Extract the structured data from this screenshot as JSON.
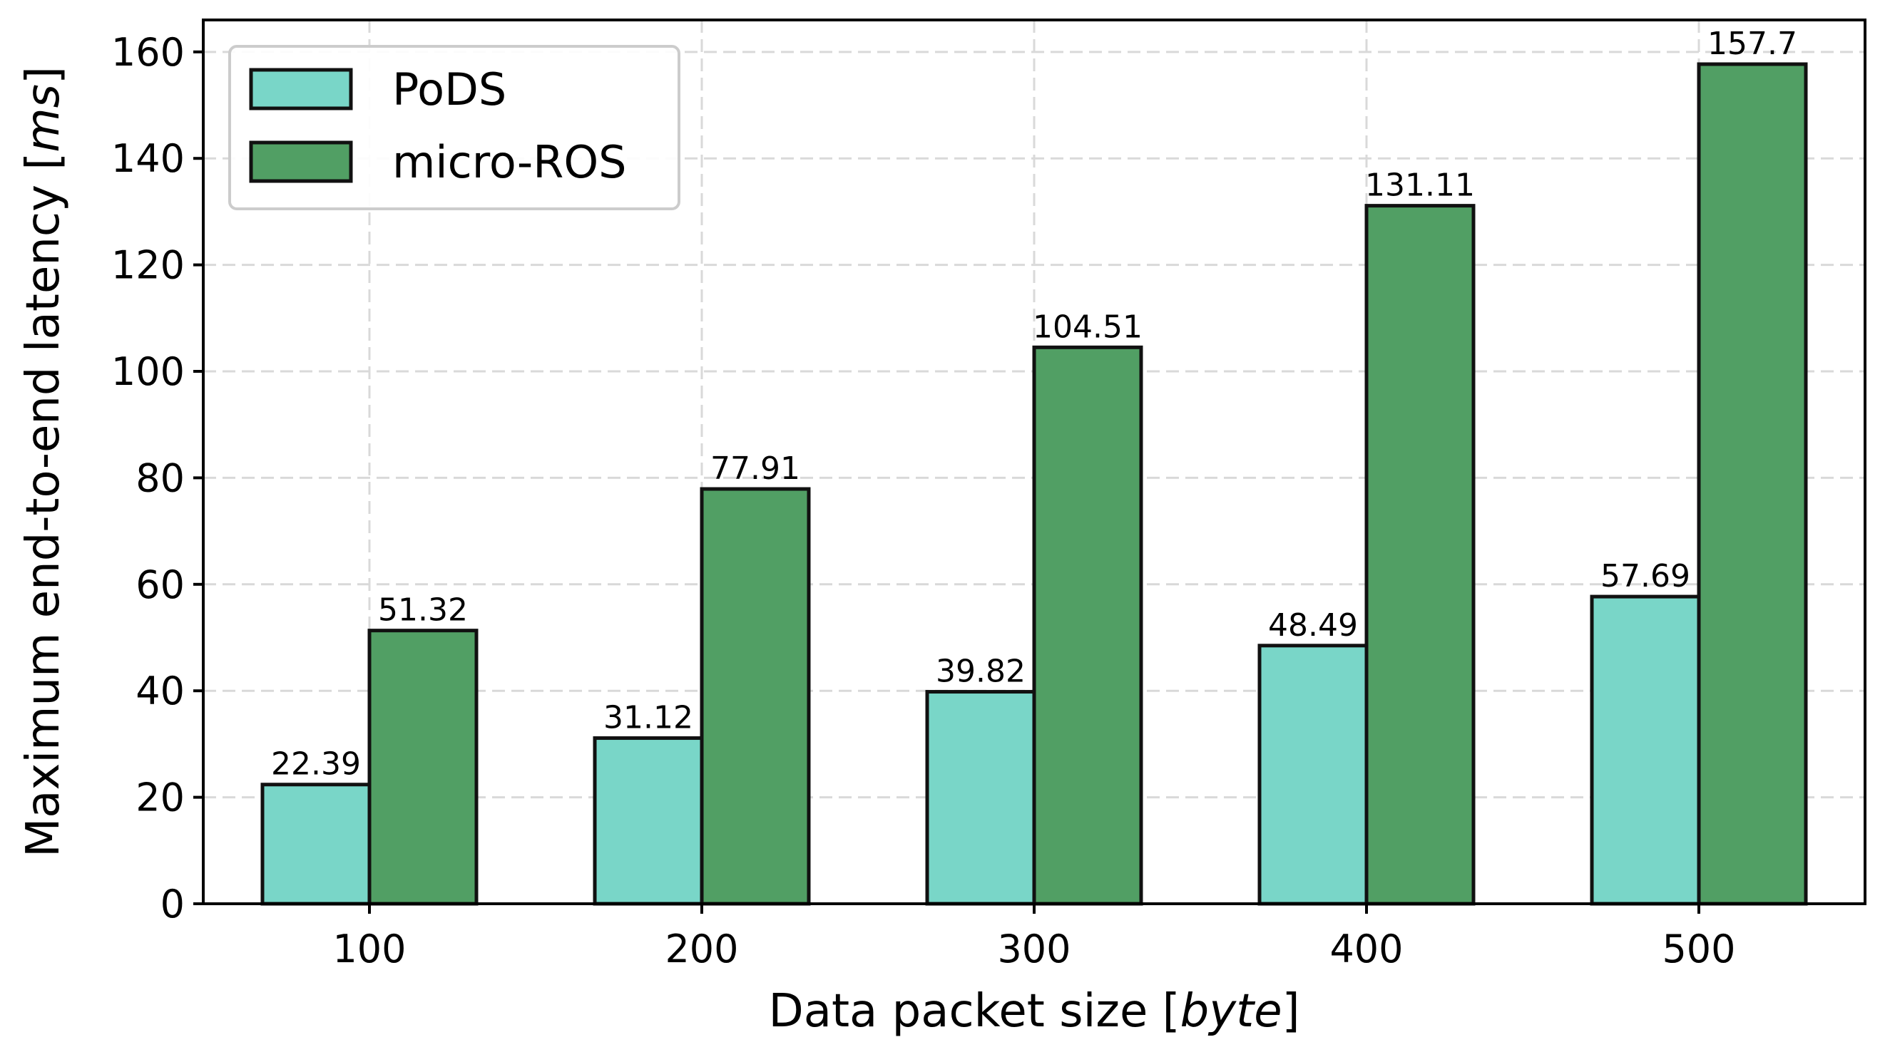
{
  "chart_data": {
    "type": "bar",
    "categories": [
      "100",
      "200",
      "300",
      "400",
      "500"
    ],
    "series": [
      {
        "name": "PoDS",
        "values": [
          22.39,
          31.12,
          39.82,
          48.49,
          57.69
        ],
        "labels": [
          "22.39",
          "31.12",
          "39.82",
          "48.49",
          "57.69"
        ],
        "color": "#79d6c8"
      },
      {
        "name": "micro-ROS",
        "values": [
          51.32,
          77.91,
          104.51,
          131.11,
          157.7
        ],
        "labels": [
          "51.32",
          "77.91",
          "104.51",
          "131.11",
          "157.7"
        ],
        "color": "#519f64"
      }
    ],
    "title": "",
    "xlabel_prefix": "Data packet size [",
    "xlabel_unit": "byte",
    "xlabel_suffix": "]",
    "ylabel_prefix": "Maximum end-to-end latency [",
    "ylabel_unit": "ms",
    "ylabel_suffix": "]",
    "ylim": [
      0,
      166
    ],
    "yticks": [
      0,
      20,
      40,
      60,
      80,
      100,
      120,
      140,
      160
    ],
    "ytick_labels": [
      "0",
      "20",
      "40",
      "60",
      "80",
      "100",
      "120",
      "140",
      "160"
    ],
    "grid": true,
    "legend_position": "top-left"
  }
}
